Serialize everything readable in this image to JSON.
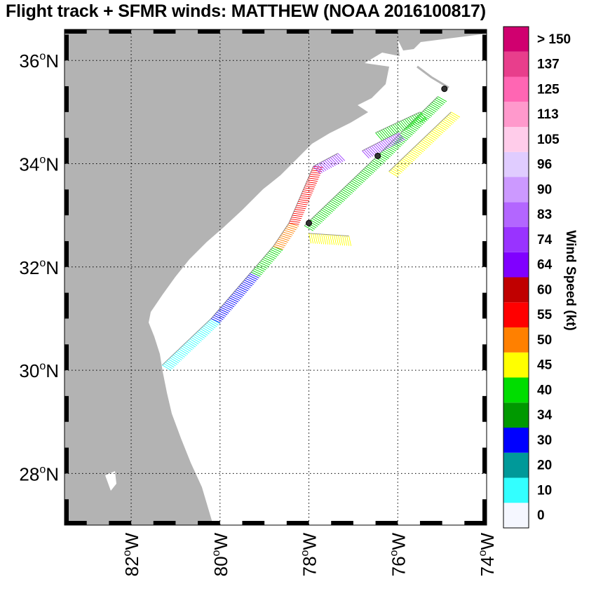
{
  "title": "Flight track + SFMR winds: MATTHEW (NOAA 2016100817)",
  "map": {
    "lon_range": [
      -83.5,
      -74
    ],
    "lat_range": [
      27,
      36.6
    ],
    "lat_ticks": [
      {
        "value": 36,
        "label_deg": "36",
        "label_unit": "N"
      },
      {
        "value": 34,
        "label_deg": "34",
        "label_unit": "N"
      },
      {
        "value": 32,
        "label_deg": "32",
        "label_unit": "N"
      },
      {
        "value": 30,
        "label_deg": "30",
        "label_unit": "N"
      },
      {
        "value": 28,
        "label_deg": "28",
        "label_unit": "N"
      }
    ],
    "lon_ticks": [
      {
        "value": -82,
        "label_deg": "82",
        "label_unit": "W"
      },
      {
        "value": -80,
        "label_deg": "80",
        "label_unit": "W"
      },
      {
        "value": -78,
        "label_deg": "78",
        "label_unit": "W"
      },
      {
        "value": -76,
        "label_deg": "76",
        "label_unit": "W"
      },
      {
        "value": -74,
        "label_deg": "74",
        "label_unit": "W"
      }
    ],
    "grid": "dotted",
    "land_color": "#b3b3b3",
    "track_color": "#8c8c8c"
  },
  "colorbar": {
    "label": "Wind Speed (kt)",
    "tick_labels": [
      "0",
      "10",
      "20",
      "30",
      "34",
      "40",
      "45",
      "50",
      "55",
      "60",
      "64",
      "74",
      "83",
      "90",
      "96",
      "105",
      "113",
      "125",
      "137",
      "> 150"
    ],
    "colors": [
      "#f5f7ff",
      "#33ffff",
      "#009999",
      "#0000ff",
      "#009900",
      "#00dd00",
      "#ffff00",
      "#ff8000",
      "#ff0000",
      "#c00000",
      "#8000ff",
      "#9933ff",
      "#b366ff",
      "#cc99ff",
      "#e0ccff",
      "#ffccea",
      "#ff99cc",
      "#ff66b3",
      "#e83e8c",
      "#d0006f"
    ]
  },
  "flight": {
    "segments": [
      {
        "speed_kt": 12,
        "start": [
          -81.3,
          30.1
        ],
        "end": [
          -80.2,
          31.0
        ]
      },
      {
        "speed_kt": 30,
        "start": [
          -80.2,
          31.0
        ],
        "end": [
          -79.3,
          31.9
        ]
      },
      {
        "speed_kt": 42,
        "start": [
          -79.3,
          31.9
        ],
        "end": [
          -78.8,
          32.4
        ]
      },
      {
        "speed_kt": 52,
        "start": [
          -78.8,
          32.4
        ],
        "end": [
          -78.45,
          32.85
        ]
      },
      {
        "speed_kt": 57,
        "start": [
          -78.45,
          32.85
        ],
        "end": [
          -77.9,
          33.95
        ]
      },
      {
        "speed_kt": 78,
        "start": [
          -77.9,
          33.95
        ],
        "end": [
          -77.35,
          34.2
        ]
      },
      {
        "speed_kt": 47,
        "start": [
          -78.0,
          32.65
        ],
        "end": [
          -77.1,
          32.6
        ]
      },
      {
        "speed_kt": 44,
        "start": [
          -78.1,
          32.8
        ],
        "end": [
          -76.4,
          34.2
        ]
      },
      {
        "speed_kt": 44,
        "start": [
          -76.4,
          34.2
        ],
        "end": [
          -75.1,
          35.3
        ]
      },
      {
        "speed_kt": 47,
        "start": [
          -76.2,
          33.85
        ],
        "end": [
          -74.8,
          35.0
        ]
      },
      {
        "speed_kt": 78,
        "start": [
          -76.8,
          34.25
        ],
        "end": [
          -76.0,
          34.6
        ]
      },
      {
        "speed_kt": 40,
        "start": [
          -76.5,
          34.6
        ],
        "end": [
          -75.5,
          35.0
        ]
      }
    ],
    "dropsondes": [
      {
        "lon": -78.0,
        "lat": 32.85
      },
      {
        "lon": -76.45,
        "lat": 34.15
      },
      {
        "lon": -74.95,
        "lat": 35.45
      }
    ]
  }
}
